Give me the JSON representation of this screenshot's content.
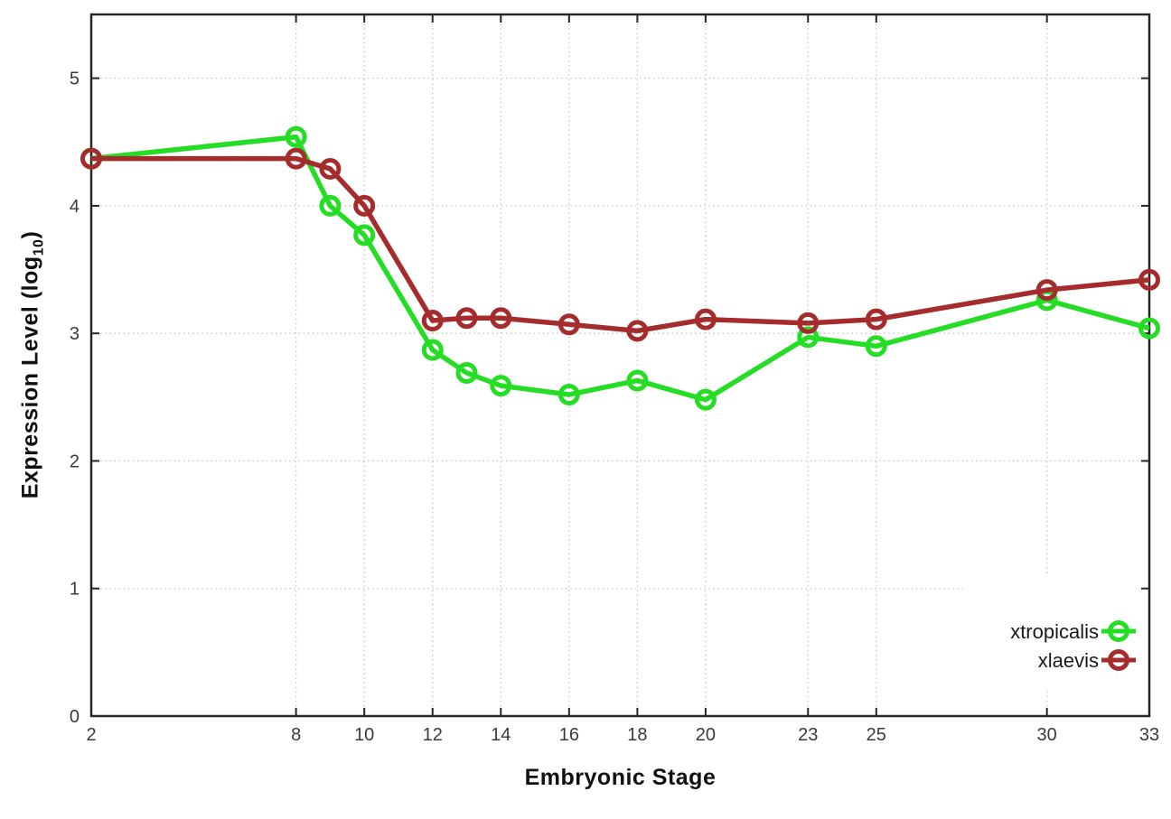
{
  "figure": {
    "xlabel": "Embryonic Stage",
    "ylabel": {
      "prefix": "Expression Level (log",
      "sub": "10",
      "suffix": ")"
    },
    "colors": {
      "background": "#ffffff",
      "grid": "#c4c4c4",
      "axis": "#262626",
      "tick_text": "#3a3a3a",
      "legend_text": "#1a1a1a"
    }
  },
  "chart_data": {
    "type": "line",
    "title": "",
    "xlabel": "Embryonic Stage",
    "ylabel": "Expression Level (log10)",
    "x": [
      2,
      8,
      9,
      10,
      12,
      13,
      14,
      16,
      18,
      20,
      23,
      25,
      30,
      33
    ],
    "series": [
      {
        "name": "xtropicalis",
        "color": "#24dd24",
        "values": [
          4.37,
          4.54,
          4.0,
          3.77,
          2.87,
          2.69,
          2.59,
          2.52,
          2.63,
          2.48,
          2.97,
          2.9,
          3.26,
          3.04
        ]
      },
      {
        "name": "xlaevis",
        "color": "#a52c2c",
        "values": [
          4.37,
          4.37,
          4.29,
          4.0,
          3.1,
          3.12,
          3.12,
          3.07,
          3.02,
          3.11,
          3.08,
          3.11,
          3.34,
          3.42
        ]
      }
    ],
    "xticks": [
      2,
      8,
      10,
      12,
      14,
      16,
      18,
      20,
      23,
      25,
      30,
      33
    ],
    "yticks": [
      0,
      1,
      2,
      3,
      4,
      5
    ],
    "xlim": [
      2,
      33
    ],
    "ylim": [
      0,
      5.5
    ],
    "grid": true,
    "grid_style": "dotted",
    "marker": "open-circle",
    "legend_position": "inside-bottom-right",
    "legend": [
      "xtropicalis",
      "xlaevis"
    ]
  }
}
